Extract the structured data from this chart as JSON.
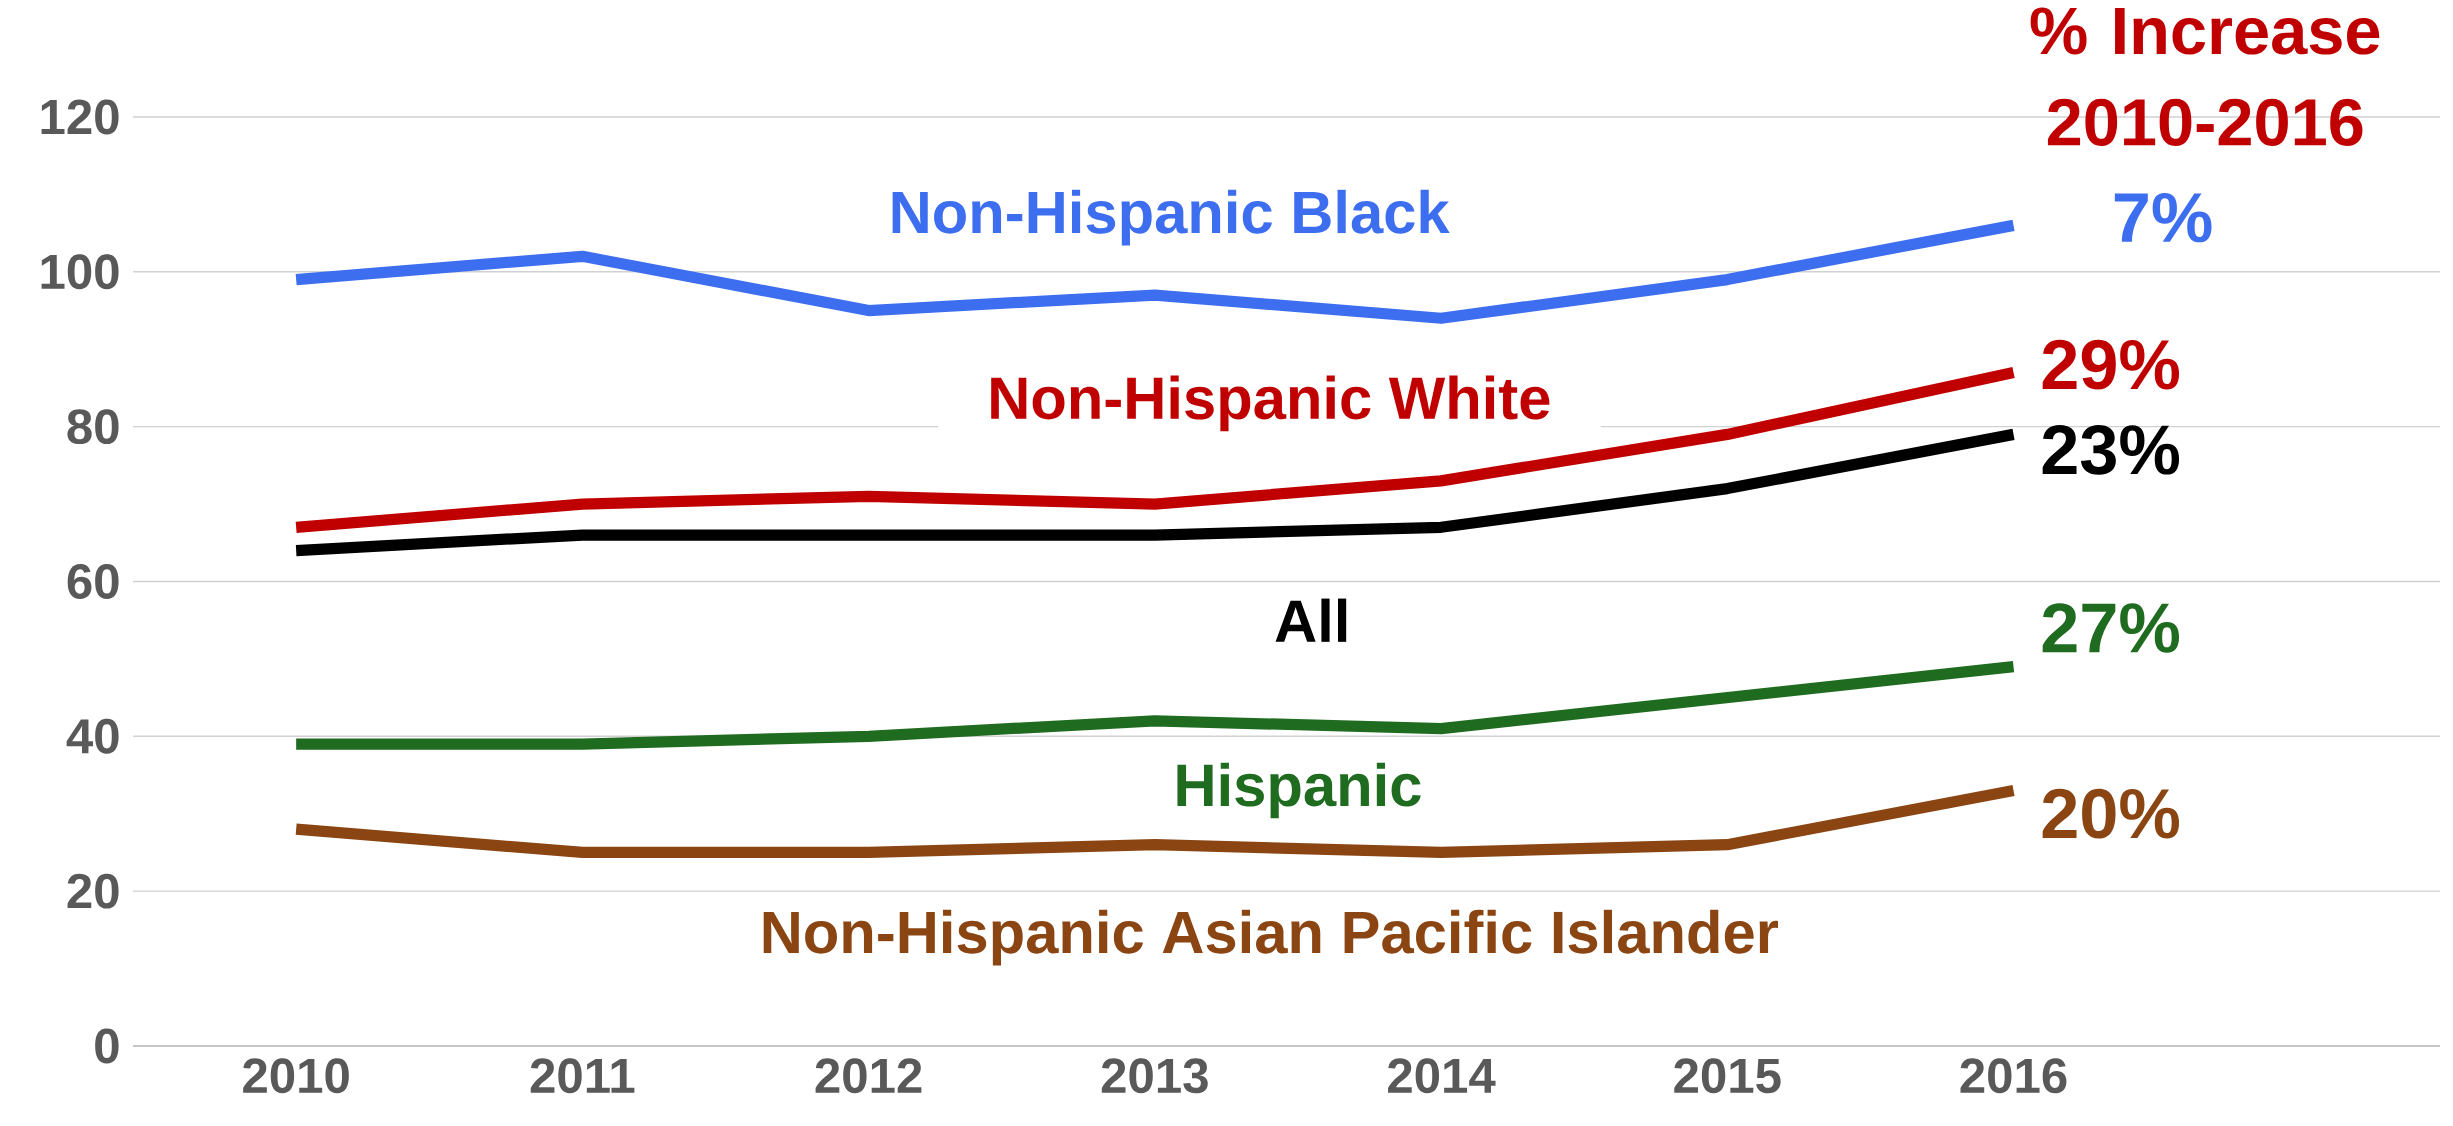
{
  "chart_data": {
    "type": "line",
    "categories": [
      "2010",
      "2011",
      "2012",
      "2013",
      "2014",
      "2015",
      "2016"
    ],
    "series": [
      {
        "name": "Non-Hispanic Black",
        "color": "#3d6ef0",
        "values": [
          99,
          102,
          95,
          97,
          94,
          99,
          106
        ]
      },
      {
        "name": "Non-Hispanic White",
        "color": "#c00000",
        "values": [
          67,
          70,
          71,
          70,
          73,
          79,
          87
        ]
      },
      {
        "name": "All",
        "color": "#000000",
        "values": [
          64,
          66,
          66,
          66,
          67,
          72,
          79
        ]
      },
      {
        "name": "Hispanic",
        "color": "#1f6b1f",
        "values": [
          39,
          39,
          40,
          42,
          41,
          45,
          49
        ]
      },
      {
        "name": "Non-Hispanic Asian Pacific Islander",
        "color": "#8a4513",
        "values": [
          28,
          25,
          25,
          26,
          25,
          26,
          33
        ]
      }
    ],
    "ylim": [
      0,
      120
    ],
    "yticks": [
      0,
      20,
      40,
      60,
      80,
      100,
      120
    ],
    "grid": "y",
    "marker": "none",
    "annotations": [
      "% Increase 2010-2016",
      "7%",
      "29%",
      "23%",
      "27%",
      "20%"
    ]
  }
}
